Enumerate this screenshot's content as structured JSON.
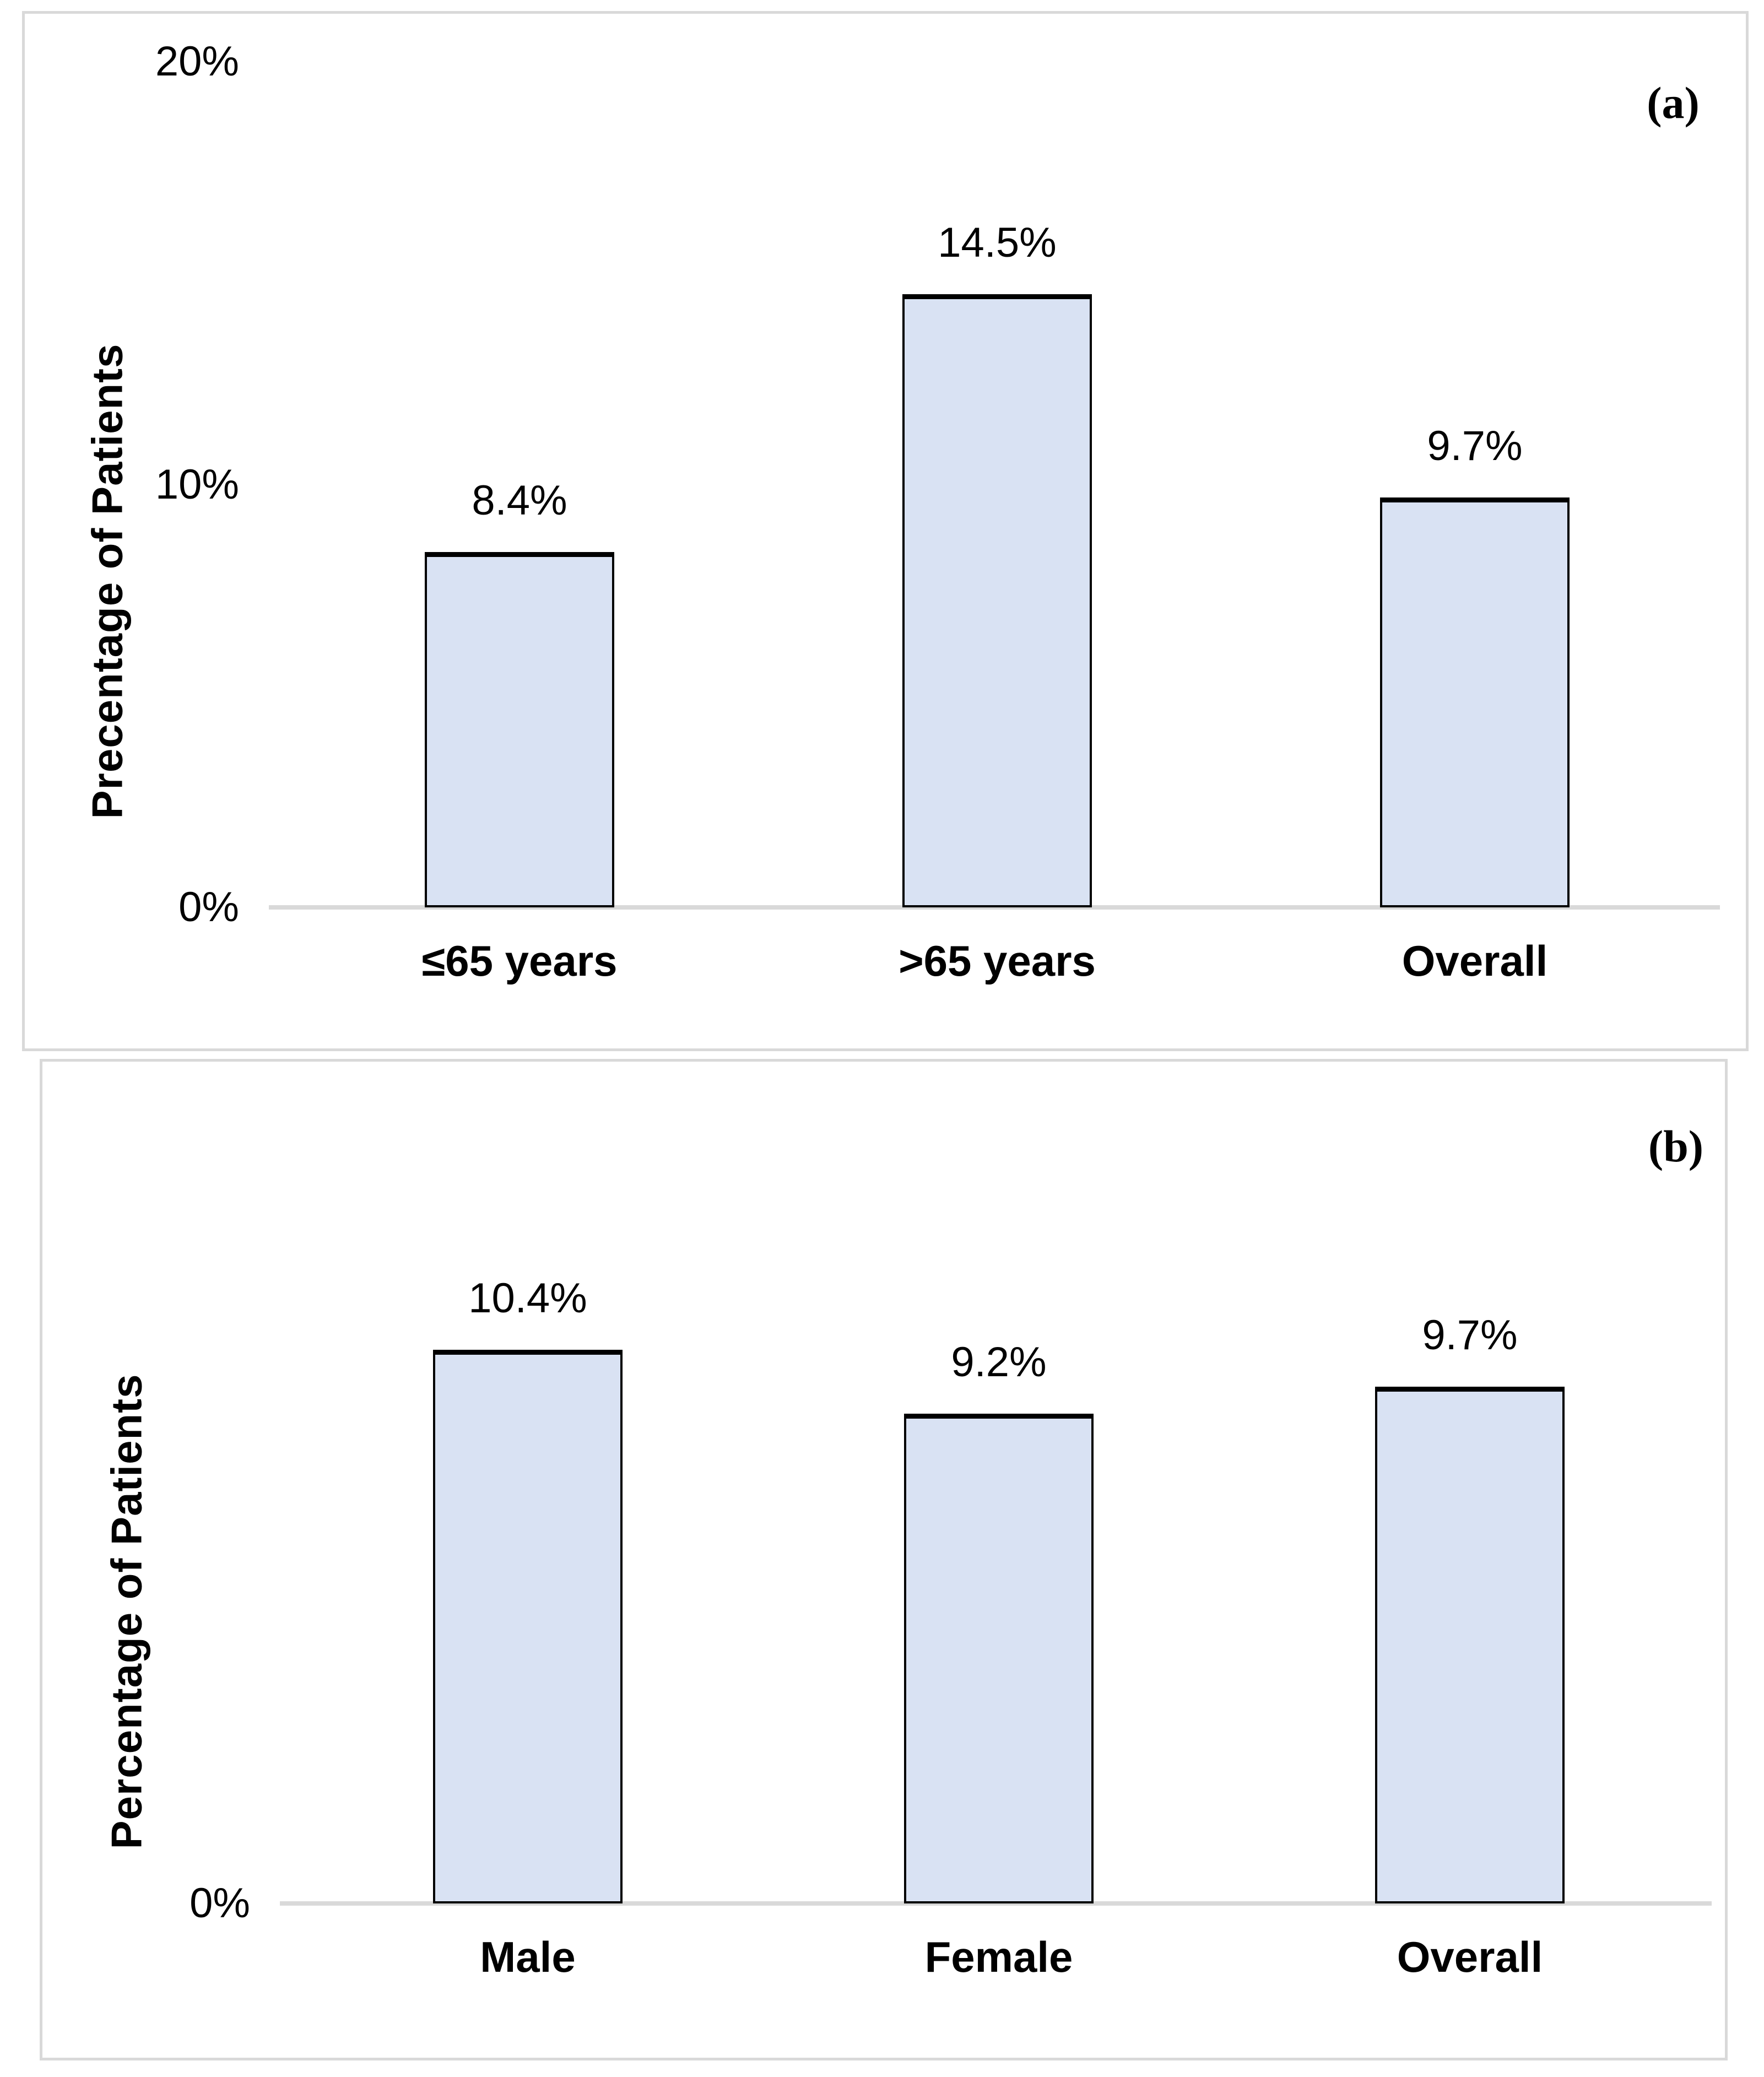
{
  "figure": {
    "description": "Two-panel bar chart figure of patient percentages",
    "bar_fill_color": "#d9e2f3",
    "bar_border_color": "#000000",
    "axis_line_color": "#d9d9d9",
    "panel_border_color": "#d9d9d9"
  },
  "chart_data": [
    {
      "id": "a",
      "type": "bar",
      "panel_label": "(a)",
      "ylabel": "Precentage of Patients",
      "xlabel": "",
      "categories": [
        "≤65 years",
        ">65 years",
        "Overall"
      ],
      "values": [
        8.4,
        14.5,
        9.7
      ],
      "value_labels": [
        "8.4%",
        "14.5%",
        "9.7%"
      ],
      "yticks": [
        {
          "value": 0,
          "label": "0%"
        },
        {
          "value": 10,
          "label": "10%"
        },
        {
          "value": 20,
          "label": "20%"
        }
      ],
      "ylim": [
        0,
        20
      ],
      "grid": false,
      "legend": "none"
    },
    {
      "id": "b",
      "type": "bar",
      "panel_label": "(b)",
      "ylabel": "Percentage of Patients",
      "xlabel": "",
      "categories": [
        "Male",
        "Female",
        "Overall"
      ],
      "values": [
        10.4,
        9.2,
        9.7
      ],
      "value_labels": [
        "10.4%",
        "9.2%",
        "9.7%"
      ],
      "yticks": [
        {
          "value": 0,
          "label": "0%"
        }
      ],
      "ylim": [
        0,
        12
      ],
      "grid": false,
      "legend": "none"
    }
  ]
}
